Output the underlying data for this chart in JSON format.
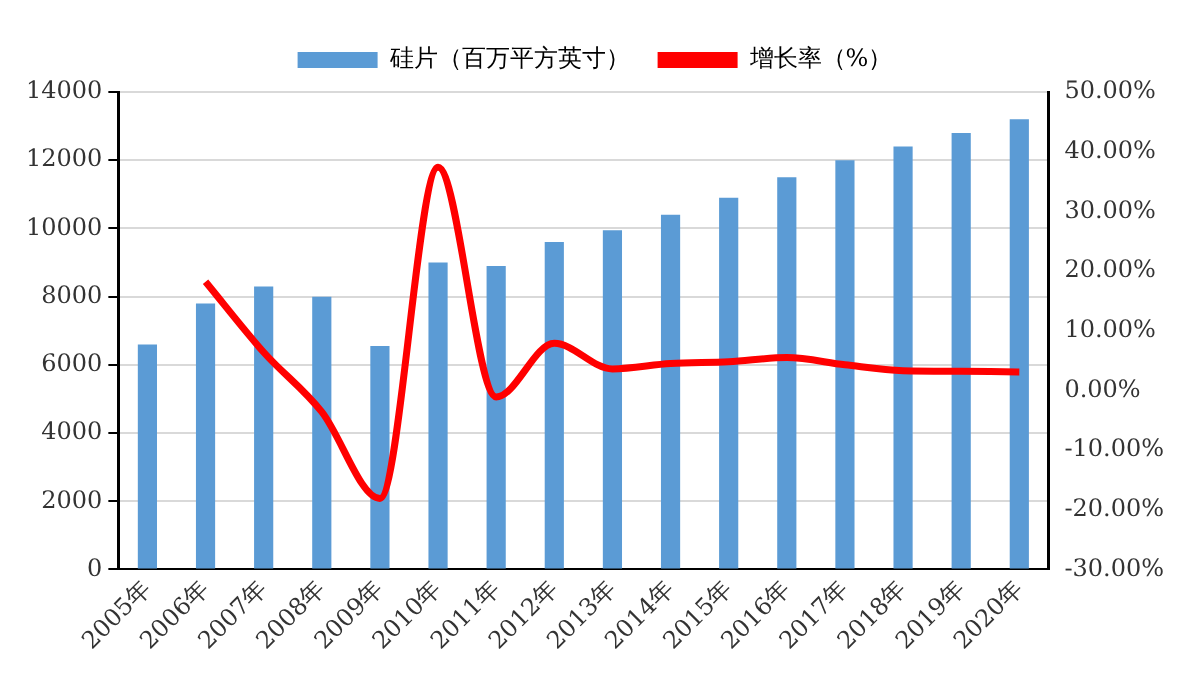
{
  "chart_data": {
    "type": "bar",
    "categories": [
      "2005年",
      "2006年",
      "2007年",
      "2008年",
      "2009年",
      "2010年",
      "2011年",
      "2012年",
      "2013年",
      "2014年",
      "2015年",
      "2016年",
      "2017年",
      "2018年",
      "2019年",
      "2020年"
    ],
    "series": [
      {
        "name": "硅片（百万平方英寸）",
        "color": "#5b9bd5",
        "values": [
          6600,
          7800,
          8300,
          8000,
          6550,
          9000,
          8900,
          9600,
          9950,
          10400,
          10900,
          11500,
          12000,
          12400,
          12800,
          13200
        ]
      },
      {
        "name": "增长率（%）",
        "type": "line",
        "axis": "y2",
        "color": "#ff0000",
        "values": [
          null,
          18.2,
          6.4,
          -3.6,
          -18.1,
          37.4,
          -1.1,
          7.9,
          3.6,
          4.5,
          4.8,
          5.5,
          4.3,
          3.3,
          3.2,
          3.1
        ]
      }
    ],
    "ylim": [
      0,
      14000
    ],
    "yticks": [
      0,
      2000,
      4000,
      6000,
      8000,
      10000,
      12000,
      14000
    ],
    "y2lim": [
      -30,
      50
    ],
    "y2ticks": [
      {
        "value": -30,
        "label": "-30.00%"
      },
      {
        "value": -20,
        "label": "-20.00%"
      },
      {
        "value": -10,
        "label": "-10.00%"
      },
      {
        "value": 0,
        "label": "0.00%"
      },
      {
        "value": 10,
        "label": "10.00%"
      },
      {
        "value": 20,
        "label": "20.00%"
      },
      {
        "value": 30,
        "label": "30.00%"
      },
      {
        "value": 40,
        "label": "40.00%"
      },
      {
        "value": 50,
        "label": "50.00%"
      }
    ],
    "grid": "y",
    "legend": "top",
    "marker": "none"
  }
}
